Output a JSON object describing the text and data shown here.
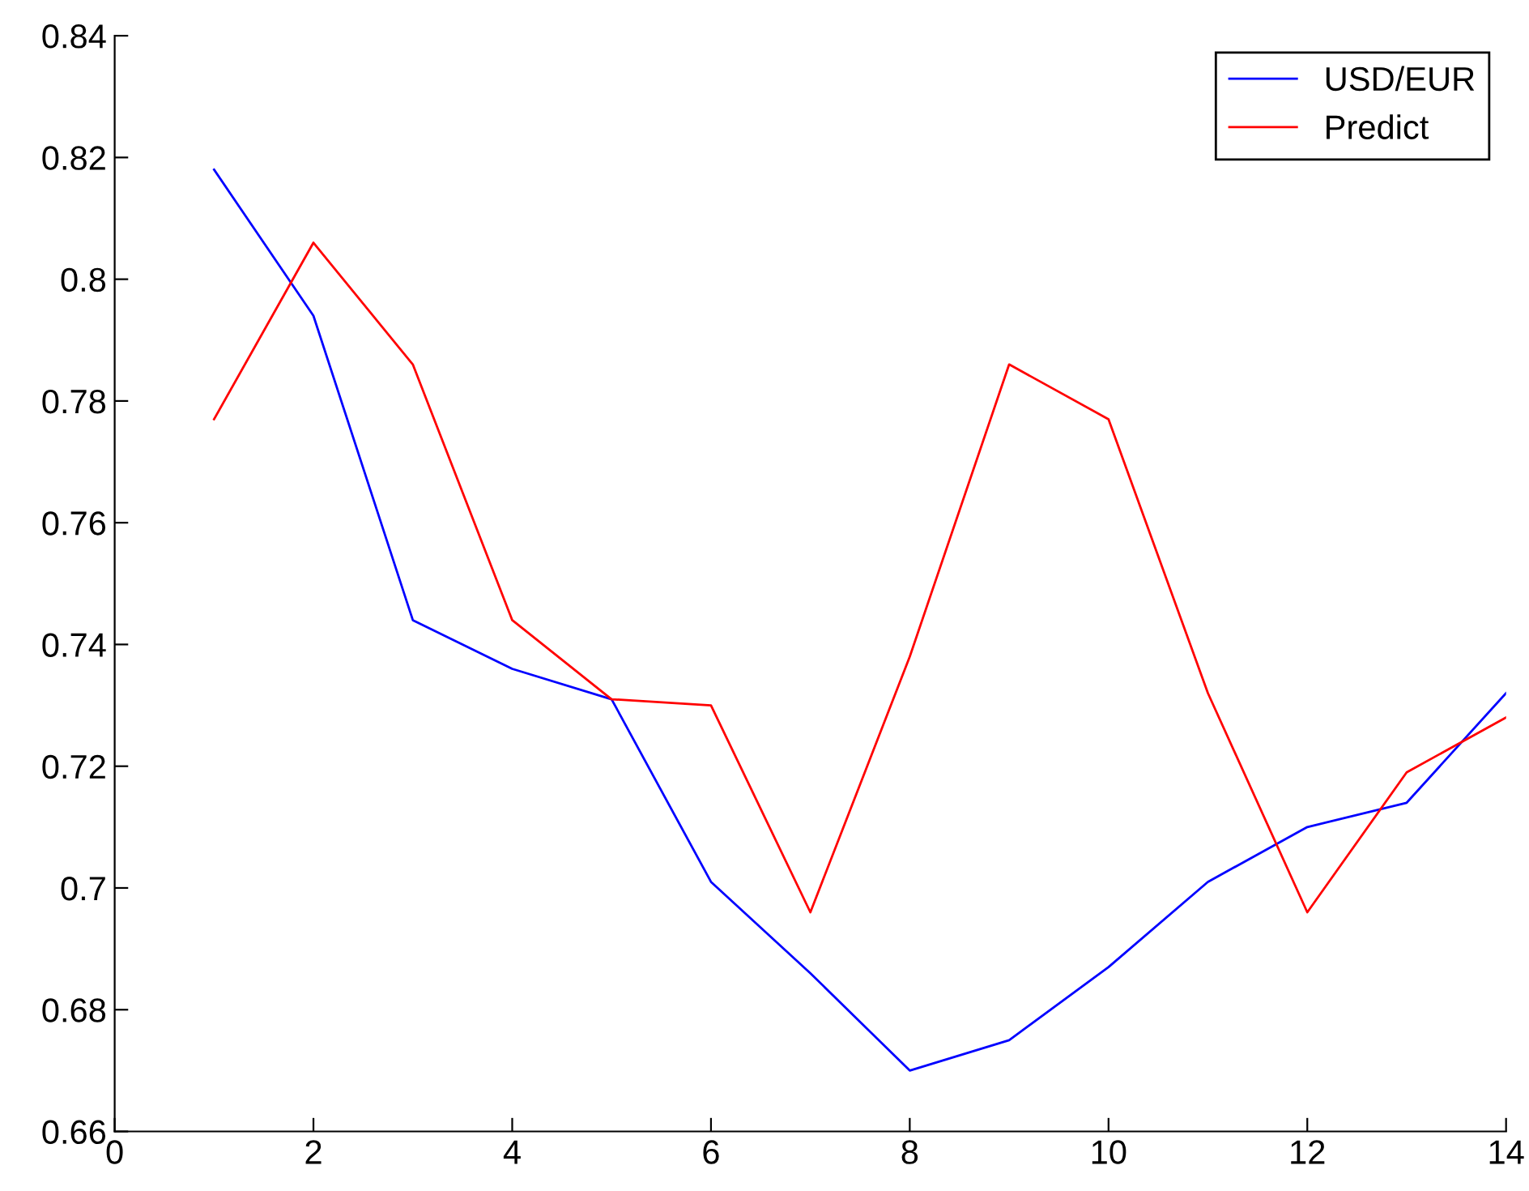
{
  "chart_data": {
    "type": "line",
    "x": [
      1,
      2,
      3,
      4,
      5,
      6,
      7,
      8,
      9,
      10,
      11,
      12,
      13,
      14
    ],
    "series": [
      {
        "name": "USD/EUR",
        "color": "#0000ff",
        "values": [
          0.818,
          0.794,
          0.744,
          0.736,
          0.731,
          0.701,
          0.686,
          0.67,
          0.675,
          0.687,
          0.701,
          0.71,
          0.714,
          0.732
        ]
      },
      {
        "name": "Predict",
        "color": "#ff0000",
        "values": [
          0.777,
          0.806,
          0.786,
          0.744,
          0.731,
          0.73,
          0.696,
          0.738,
          0.786,
          0.777,
          0.732,
          0.696,
          0.719,
          0.728
        ]
      }
    ],
    "xlim": [
      0,
      14
    ],
    "xticks": [
      0,
      2,
      4,
      6,
      8,
      10,
      12,
      14
    ],
    "ylim": [
      0.66,
      0.84
    ],
    "yticks": [
      0.66,
      0.68,
      0.7,
      0.72,
      0.74,
      0.76,
      0.78,
      0.8,
      0.82,
      0.84
    ],
    "legend": "top right",
    "grid": false,
    "marker": "none",
    "line_style": "solid"
  }
}
